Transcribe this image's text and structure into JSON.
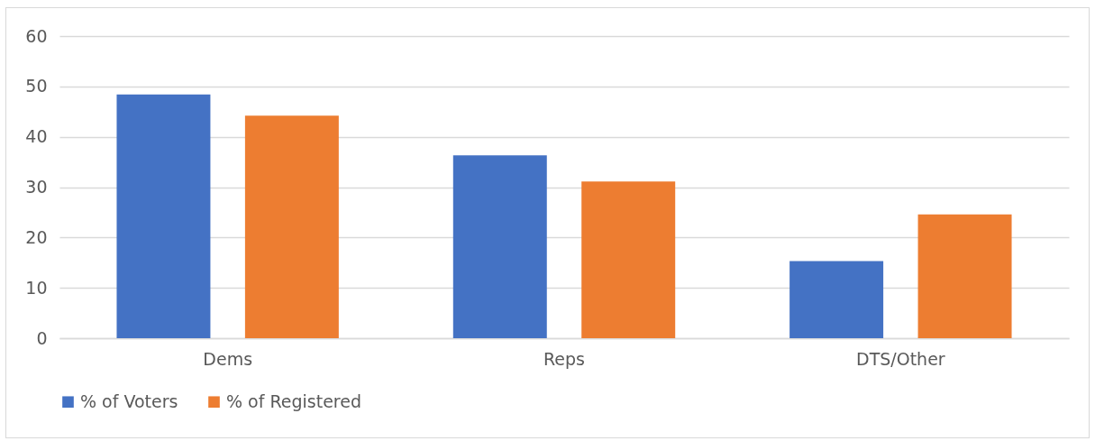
{
  "chart_data": {
    "type": "bar",
    "categories": [
      "Dems",
      "Reps",
      "DTS/Other"
    ],
    "series": [
      {
        "name": "% of Voters",
        "color": "#4472c4",
        "values": [
          48.4,
          36.3,
          15.3
        ]
      },
      {
        "name": "% of Registered",
        "color": "#ed7d31",
        "values": [
          44.2,
          31.1,
          24.6
        ]
      }
    ],
    "ylim": [
      0,
      60
    ],
    "yticks": [
      0,
      10,
      20,
      30,
      40,
      50,
      60
    ],
    "grid": "y",
    "legend": "bottom"
  }
}
